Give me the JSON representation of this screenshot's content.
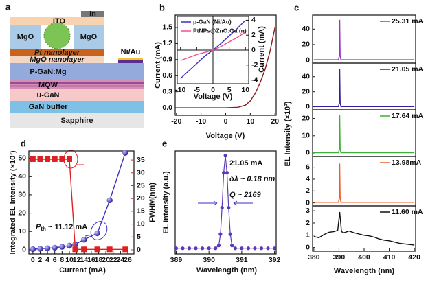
{
  "diagram": {
    "panel_label": "a",
    "layers": [
      "ITO",
      "In",
      "MgO",
      "MgO",
      "Pt nanolayer",
      "MgO nanolayer",
      "Ni/Au",
      "P-GaN:Mg",
      "MQW",
      "u-GaN",
      "GaN buffer",
      "Sapphire"
    ]
  },
  "chart_data": [
    {
      "type": "line",
      "panel_label": "b",
      "xlabel": "Voltage (V)",
      "ylabel": "Current (mA)",
      "color": "#8b1a1a",
      "x": [
        -20,
        -10,
        0,
        5,
        8,
        10,
        12,
        14,
        16,
        18,
        20
      ],
      "values": [
        0,
        0,
        0,
        0.01,
        0.05,
        0.13,
        0.27,
        0.47,
        0.72,
        1.05,
        1.5
      ],
      "xlim": [
        -20.5,
        20.5
      ],
      "ylim": [
        -0.14,
        1.73
      ],
      "xticks": [
        -20,
        -10,
        0,
        10,
        20
      ],
      "yticks": [
        {
          "value": 0,
          "label": "0.0"
        },
        0.3,
        0.6,
        0.9,
        1.2,
        1.5
      ]
    },
    {
      "type": "line",
      "xlabel": "Voltage (V)",
      "y2label": "Current (mA)",
      "x": [
        -10,
        -7.5,
        -5,
        -2.5,
        0,
        2.5,
        5,
        7.5,
        10
      ],
      "series": [
        {
          "name": "p-GaN (Ni/Au)",
          "color": "#3a2fc0",
          "axis": "y2",
          "values": [
            -3.8,
            -2.8,
            -1.8,
            -0.8,
            0,
            0.9,
            1.9,
            2.9,
            4.0
          ]
        },
        {
          "name": "PtNPs@ZnO:Ga (n)",
          "color": "#f0508a",
          "axis": "y2",
          "values": [
            -1.4,
            -1.0,
            -0.6,
            -0.3,
            0,
            0.5,
            1.1,
            1.7,
            2.4
          ]
        }
      ],
      "xlim": [
        -11,
        11
      ],
      "y2lim": [
        -4.5,
        4.5
      ],
      "xticks": [
        -10,
        -5,
        0,
        5,
        10
      ],
      "y2ticks": [
        -4,
        -2,
        0,
        2,
        4
      ]
    },
    {
      "type": "line",
      "panel_label": "c",
      "ylabel": "EL Intensity (×10³)",
      "x": [
        380,
        389.8,
        390.1,
        390.3,
        390.5,
        390.8,
        420
      ],
      "series": [
        {
          "name": "25.31 mA",
          "color": "#9932cc",
          "values": [
            0.3,
            0.3,
            5,
            52,
            5,
            0.3,
            0.3
          ]
        }
      ],
      "xlim": [
        379.5,
        420.5
      ],
      "ylim": [
        -4,
        58
      ],
      "yticks": [
        0,
        20,
        40
      ]
    },
    {
      "type": "line",
      "x": [
        380,
        389.8,
        390.1,
        390.3,
        390.5,
        390.8,
        420
      ],
      "series": [
        {
          "name": "21.05 mA",
          "color": "#3a1a9e",
          "values": [
            0.3,
            0.3,
            5,
            50,
            5,
            0.3,
            0.3
          ]
        }
      ],
      "xlim": [
        379.5,
        420.5
      ],
      "ylim": [
        -4,
        58
      ],
      "yticks": [
        0,
        20,
        40
      ]
    },
    {
      "type": "line",
      "x": [
        380,
        389.8,
        390.1,
        390.3,
        390.5,
        390.8,
        420
      ],
      "series": [
        {
          "name": "17.64 mA",
          "color": "#3cb034",
          "values": [
            0.2,
            0.2,
            2,
            22,
            2,
            0.2,
            0.2
          ]
        }
      ],
      "xlim": [
        379.5,
        420.5
      ],
      "ylim": [
        -2,
        25
      ],
      "yticks": [
        0,
        10,
        20
      ]
    },
    {
      "type": "line",
      "x": [
        380,
        389.8,
        390.1,
        390.3,
        390.5,
        390.8,
        420
      ],
      "series": [
        {
          "name": "13.98mA",
          "color": "#f05a28",
          "values": [
            0.1,
            0.1,
            0.8,
            6.6,
            0.8,
            0.1,
            0.1
          ]
        }
      ],
      "xlim": [
        379.5,
        420.5
      ],
      "ylim": [
        -0.5,
        7.8
      ],
      "yticks": [
        0,
        2,
        4,
        6
      ]
    },
    {
      "type": "line",
      "xlabel": "Wavelength (nm)",
      "x": [
        380,
        382,
        384,
        386,
        388,
        389.5,
        390.3,
        391,
        392,
        394,
        396,
        398,
        400,
        402,
        404,
        406,
        408,
        410,
        412,
        414,
        416,
        418,
        420
      ],
      "series": [
        {
          "name": "11.60 mA",
          "color": "#111111",
          "values": [
            0.9,
            0.8,
            1.05,
            1.25,
            1.3,
            1.4,
            2.9,
            1.3,
            1.2,
            1.35,
            1.2,
            1.1,
            1.0,
            0.95,
            0.85,
            0.7,
            0.6,
            0.55,
            0.45,
            0.35,
            0.3,
            0.25,
            0.2
          ]
        }
      ],
      "xlim": [
        379.5,
        420.5
      ],
      "ylim": [
        -0.3,
        3.4
      ],
      "yticks": [
        0,
        1,
        2,
        3
      ],
      "xticks": [
        380,
        390,
        400,
        410,
        420
      ]
    },
    {
      "type": "line",
      "panel_label": "d",
      "xlabel": "Current (mA)",
      "ylabel": "Integrated EL Intensity (×10³)",
      "y2label": "FWHM(nm)",
      "x": [
        0,
        2,
        4,
        6,
        8,
        10,
        11.6,
        13.98,
        17.64,
        21.05,
        25.31
      ],
      "series": [
        {
          "color": "#3a2fc0",
          "marker": "circle",
          "values": [
            0.3,
            0.5,
            0.8,
            1.1,
            1.6,
            2.2,
            3,
            5.5,
            9,
            27,
            53
          ]
        },
        {
          "color": "#e02020",
          "marker": "square",
          "axis": "y2",
          "values": [
            35.3,
            35.3,
            35.3,
            35.3,
            35.3,
            35.3,
            0.2,
            0.2,
            0.2,
            0.2,
            0.2
          ]
        }
      ],
      "xlim": [
        -1.1,
        27.7
      ],
      "ylim": [
        -2.3,
        54
      ],
      "y2lim": [
        -1.6,
        38.5
      ],
      "xticks": [
        0,
        2,
        4,
        6,
        8,
        10,
        12,
        14,
        16,
        18,
        20,
        22,
        24,
        26
      ],
      "yticks": [
        0,
        10,
        20,
        30,
        40,
        50
      ],
      "y2ticks": [
        0,
        5,
        10,
        15,
        20,
        25,
        30,
        35
      ],
      "annotation": {
        "symbol": "P",
        "subscript": "th",
        "text": " ~ 11.12 mA"
      }
    },
    {
      "type": "line",
      "panel_label": "e",
      "xlabel": "Wavelength (nm)",
      "ylabel": "EL Intensity (a.u.)",
      "color": "#5a3ab8",
      "marker": "dot",
      "x": [
        389.0,
        389.2,
        389.4,
        389.6,
        389.8,
        390.0,
        390.2,
        390.3,
        390.35,
        390.4,
        390.45,
        390.5,
        390.55,
        390.6,
        390.65,
        390.7,
        390.8,
        391.0,
        391.2,
        391.4,
        391.6,
        391.8,
        392.0
      ],
      "values": [
        0.02,
        0.02,
        0.02,
        0.02,
        0.02,
        0.02,
        0.02,
        0.05,
        0.17,
        0.45,
        0.82,
        1.0,
        0.82,
        0.45,
        0.17,
        0.05,
        0.02,
        0.02,
        0.02,
        0.02,
        0.02,
        0.02,
        0.02
      ],
      "xlim": [
        388.97,
        392.05
      ],
      "ylim": [
        -0.04,
        1.05
      ],
      "xticks": [
        389,
        390,
        391,
        392
      ],
      "annotations": [
        "21.05 mA",
        "δλ ~ 0.18 nm",
        "Q ~ 2169"
      ]
    }
  ]
}
